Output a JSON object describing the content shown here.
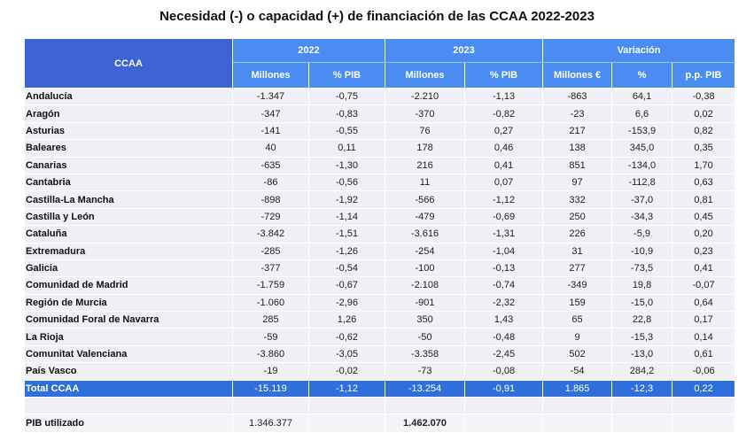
{
  "title": "Necesidad (-) o capacidad (+) de financiación de las CCAA 2022-2023",
  "header": {
    "ccaa": "CCAA",
    "y2022": "2022",
    "y2023": "2023",
    "variacion": "Variación",
    "sub": [
      "Millones",
      "% PIB",
      "Millones",
      "% PIB",
      "Millones €",
      "%",
      "p.p. PIB"
    ]
  },
  "rows": [
    [
      "Andalucía",
      "-1.347",
      "-0,75",
      "-2.210",
      "-1,13",
      "-863",
      "64,1",
      "-0,38"
    ],
    [
      "Aragón",
      "-347",
      "-0,83",
      "-370",
      "-0,82",
      "-23",
      "6,6",
      "0,02"
    ],
    [
      "Asturias",
      "-141",
      "-0,55",
      "76",
      "0,27",
      "217",
      "-153,9",
      "0,82"
    ],
    [
      "Baleares",
      "40",
      "0,11",
      "178",
      "0,46",
      "138",
      "345,0",
      "0,35"
    ],
    [
      "Canarias",
      "-635",
      "-1,30",
      "216",
      "0,41",
      "851",
      "-134,0",
      "1,70"
    ],
    [
      "Cantabria",
      "-86",
      "-0,56",
      "11",
      "0,07",
      "97",
      "-112,8",
      "0,63"
    ],
    [
      "Castilla-La Mancha",
      "-898",
      "-1,92",
      "-566",
      "-1,12",
      "332",
      "-37,0",
      "0,81"
    ],
    [
      "Castilla y León",
      "-729",
      "-1,14",
      "-479",
      "-0,69",
      "250",
      "-34,3",
      "0,45"
    ],
    [
      "Cataluña",
      "-3.842",
      "-1,51",
      "-3.616",
      "-1,31",
      "226",
      "-5,9",
      "0,20"
    ],
    [
      "Extremadura",
      "-285",
      "-1,26",
      "-254",
      "-1,04",
      "31",
      "-10,9",
      "0,23"
    ],
    [
      "Galicia",
      "-377",
      "-0,54",
      "-100",
      "-0,13",
      "277",
      "-73,5",
      "0,41"
    ],
    [
      "Comunidad de Madrid",
      "-1.759",
      "-0,67",
      "-2.108",
      "-0,74",
      "-349",
      "19,8",
      "-0,07"
    ],
    [
      "Región de Murcia",
      "-1.060",
      "-2,96",
      "-901",
      "-2,32",
      "159",
      "-15,0",
      "0,64"
    ],
    [
      "Comunidad Foral de Navarra",
      "285",
      "1,26",
      "350",
      "1,43",
      "65",
      "22,8",
      "0,17"
    ],
    [
      "La Rioja",
      "-59",
      "-0,62",
      "-50",
      "-0,48",
      "9",
      "-15,3",
      "0,14"
    ],
    [
      "Comunitat Valenciana",
      "-3.860",
      "-3,05",
      "-3.358",
      "-2,45",
      "502",
      "-13,0",
      "0,61"
    ],
    [
      "País Vasco",
      "-19",
      "-0,02",
      "-73",
      "-0,08",
      "-54",
      "284,2",
      "-0,06"
    ]
  ],
  "total": [
    "Total CCAA",
    "-15.119",
    "-1,12",
    "-13.254",
    "-0,91",
    "1.865",
    "-12,3",
    "0,22"
  ],
  "pib": {
    "label": "PIB utilizado",
    "v2022": "1.346.377",
    "v2023": "1.462.070"
  }
}
